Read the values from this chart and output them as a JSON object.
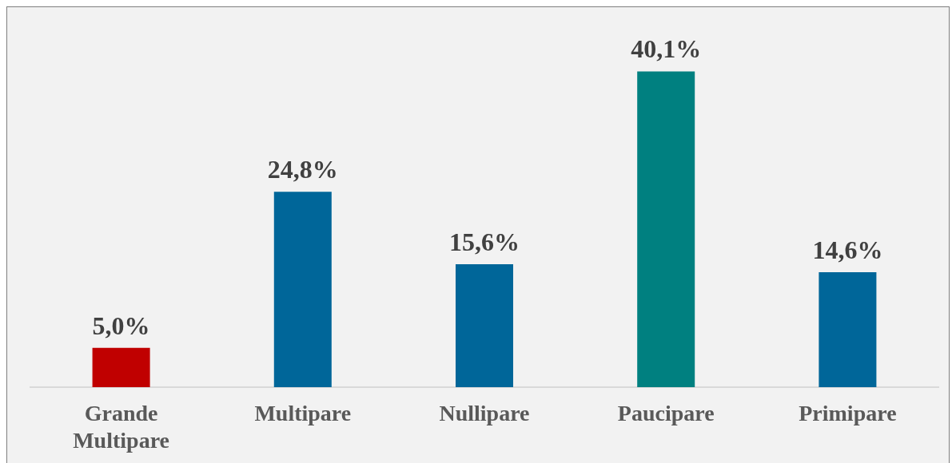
{
  "chart_data": {
    "type": "bar",
    "categories": [
      "Grande Multipare",
      "Multipare",
      "Nullipare",
      "Paucipare",
      "Primipare"
    ],
    "values": [
      5.0,
      24.8,
      15.6,
      40.1,
      14.6
    ],
    "colors": [
      "#c00000",
      "#006699",
      "#006699",
      "#008080",
      "#006699"
    ],
    "value_labels": [
      "5,0%",
      "24,8%",
      "15,6%",
      "40,1%",
      "14,6%"
    ],
    "grid": false,
    "legend": false,
    "tick_labels": "x"
  }
}
